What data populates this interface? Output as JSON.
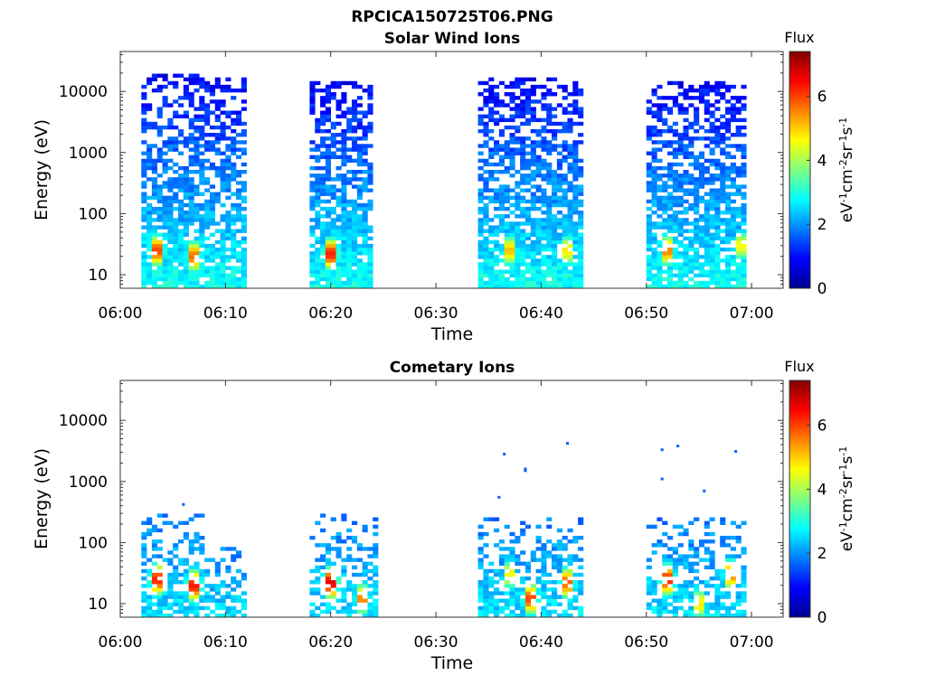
{
  "figure_title": "RPCICA150725T06.PNG",
  "colormap": [
    "#00008f",
    "#0000ff",
    "#0080ff",
    "#00ffff",
    "#80ff80",
    "#ffff00",
    "#ff8000",
    "#ff0000",
    "#800000"
  ],
  "chart_data": [
    {
      "type": "heatmap",
      "title": "Solar Wind Ions",
      "xlabel": "Time",
      "ylabel": "Energy (eV)",
      "xlim": [
        "06:00",
        "07:03"
      ],
      "ylim": [
        6,
        45000
      ],
      "yscale": "log",
      "xticks": [
        "06:00",
        "06:10",
        "06:20",
        "06:30",
        "06:40",
        "06:50",
        "07:00"
      ],
      "yticks": [
        "10",
        "100",
        "1000",
        "10000"
      ],
      "colorbar": {
        "title": "Flux",
        "label": "eV-1cm-2sr-1s-1",
        "range": [
          0,
          7.4
        ],
        "ticks": [
          "0",
          "2",
          "4",
          "6"
        ]
      },
      "blocks": [
        {
          "start": "06:02",
          "end": "06:08",
          "emax": 20000,
          "peaks": [
            [
              "06:03.5",
              25,
              6.5
            ],
            [
              "06:07",
              20,
              6.2
            ]
          ]
        },
        {
          "start": "06:08",
          "end": "06:12",
          "emax": 18000,
          "peaks": []
        },
        {
          "start": "06:18",
          "end": "06:24",
          "emax": 15000,
          "peaks": [
            [
              "06:20",
              22,
              6.8
            ]
          ]
        },
        {
          "start": "06:34",
          "end": "06:44",
          "emax": 16000,
          "peaks": [
            [
              "06:37",
              25,
              5.5
            ],
            [
              "06:42.5",
              25,
              5.2
            ]
          ]
        },
        {
          "start": "06:50",
          "end": "06:59.5",
          "emax": 15000,
          "peaks": [
            [
              "06:52",
              25,
              6.0
            ],
            [
              "06:59",
              30,
              5.0
            ]
          ]
        }
      ]
    },
    {
      "type": "heatmap",
      "title": "Cometary Ions",
      "xlabel": "Time",
      "ylabel": "Energy (eV)",
      "xlim": [
        "06:00",
        "07:03"
      ],
      "ylim": [
        6,
        45000
      ],
      "yscale": "log",
      "xticks": [
        "06:00",
        "06:10",
        "06:20",
        "06:30",
        "06:40",
        "06:50",
        "07:00"
      ],
      "yticks": [
        "10",
        "100",
        "1000",
        "10000"
      ],
      "colorbar": {
        "title": "Flux",
        "label": "eV-1cm-2sr-1s-1",
        "range": [
          0,
          7.4
        ],
        "ticks": [
          "0",
          "2",
          "4",
          "6"
        ]
      },
      "blocks": [
        {
          "start": "06:02",
          "end": "06:08",
          "emax": 300,
          "peaks": [
            [
              "06:03.5",
              25,
              6.8
            ],
            [
              "06:07",
              20,
              6.9
            ]
          ]
        },
        {
          "start": "06:08",
          "end": "06:12",
          "emax": 90,
          "peaks": []
        },
        {
          "start": "06:18",
          "end": "06:24.5",
          "emax": 280,
          "peaks": [
            [
              "06:20",
              22,
              7.2
            ],
            [
              "06:23",
              12,
              6.0
            ]
          ]
        },
        {
          "start": "06:34",
          "end": "06:44",
          "emax": 250,
          "peaks": [
            [
              "06:39",
              12,
              6.5
            ],
            [
              "06:42.5",
              22,
              6.3
            ],
            [
              "06:37",
              30,
              5.0
            ]
          ]
        },
        {
          "start": "06:50",
          "end": "06:59.5",
          "emax": 250,
          "peaks": [
            [
              "06:52",
              25,
              6.8
            ],
            [
              "06:55",
              10,
              5.2
            ],
            [
              "06:58",
              30,
              6.0
            ]
          ]
        }
      ],
      "sparse_points": [
        [
          "06:36",
          550
        ],
        [
          "06:36.5",
          2800
        ],
        [
          "06:38.5",
          1500
        ],
        [
          "06:38.5",
          1600
        ],
        [
          "06:42.5",
          4200
        ],
        [
          "06:51.5",
          3300
        ],
        [
          "06:51.5",
          1100
        ],
        [
          "06:53",
          3800
        ],
        [
          "06:55.5",
          700
        ],
        [
          "06:58.5",
          3100
        ],
        [
          "06:06",
          420
        ]
      ]
    }
  ]
}
